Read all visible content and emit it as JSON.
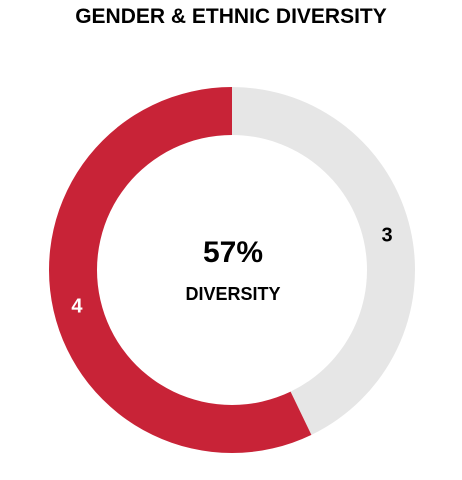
{
  "chart_data": {
    "type": "pie",
    "title": "GENDER & ETHNIC DIVERSITY",
    "categories": [
      "",
      ""
    ],
    "values": [
      3,
      4
    ],
    "data_labels": [
      "3",
      "4"
    ],
    "colors": [
      "#e6e6e6",
      "#c82337"
    ],
    "label_colors": [
      "#000000",
      "#ffffff"
    ],
    "center_value": "57%",
    "center_label": "DIVERSITY",
    "donut": true,
    "legend": "none"
  }
}
